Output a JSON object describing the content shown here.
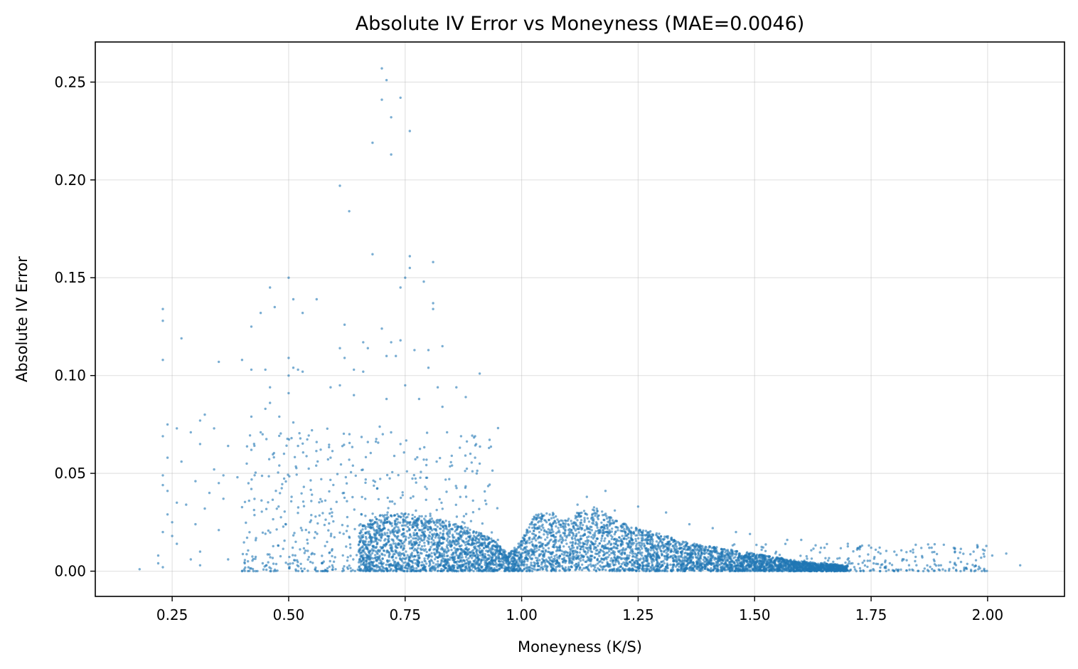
{
  "chart_data": {
    "type": "scatter",
    "title": "Absolute IV Error vs Moneyness (MAE=0.0046)",
    "xlabel": "Moneyness (K/S)",
    "ylabel": "Absolute IV Error",
    "xlim": [
      0.085,
      2.165
    ],
    "ylim": [
      -0.0129,
      0.2705
    ],
    "x_ticks": [
      0.25,
      0.5,
      0.75,
      1.0,
      1.25,
      1.5,
      1.75,
      2.0
    ],
    "x_tick_labels": [
      "0.25",
      "0.50",
      "0.75",
      "1.00",
      "1.25",
      "1.50",
      "1.75",
      "2.00"
    ],
    "y_ticks": [
      0.0,
      0.05,
      0.1,
      0.15,
      0.2,
      0.25
    ],
    "y_tick_labels": [
      "0.00",
      "0.05",
      "0.10",
      "0.15",
      "0.20",
      "0.25"
    ],
    "grid": true,
    "marker_color": "#1f77b4",
    "marker_alpha": 0.6,
    "series": [
      {
        "points": [
          [
            0.7,
            0.257
          ],
          [
            0.71,
            0.251
          ],
          [
            0.7,
            0.241
          ],
          [
            0.74,
            0.242
          ],
          [
            0.72,
            0.232
          ],
          [
            0.76,
            0.225
          ],
          [
            0.68,
            0.219
          ],
          [
            0.72,
            0.213
          ],
          [
            0.61,
            0.197
          ],
          [
            0.63,
            0.184
          ],
          [
            0.68,
            0.162
          ],
          [
            0.76,
            0.161
          ],
          [
            0.81,
            0.158
          ],
          [
            0.76,
            0.155
          ],
          [
            0.75,
            0.15
          ],
          [
            0.5,
            0.15
          ],
          [
            0.79,
            0.148
          ],
          [
            0.46,
            0.145
          ],
          [
            0.74,
            0.145
          ],
          [
            0.51,
            0.139
          ],
          [
            0.56,
            0.139
          ],
          [
            0.23,
            0.134
          ],
          [
            0.47,
            0.135
          ],
          [
            0.81,
            0.137
          ],
          [
            0.81,
            0.134
          ],
          [
            0.44,
            0.132
          ],
          [
            0.53,
            0.132
          ],
          [
            0.23,
            0.128
          ],
          [
            0.62,
            0.126
          ],
          [
            0.42,
            0.125
          ],
          [
            0.7,
            0.124
          ],
          [
            0.27,
            0.119
          ],
          [
            0.74,
            0.118
          ],
          [
            0.66,
            0.117
          ],
          [
            0.72,
            0.117
          ],
          [
            0.83,
            0.115
          ],
          [
            0.61,
            0.114
          ],
          [
            0.67,
            0.114
          ],
          [
            0.77,
            0.113
          ],
          [
            0.8,
            0.113
          ],
          [
            0.23,
            0.108
          ],
          [
            0.35,
            0.107
          ],
          [
            0.4,
            0.108
          ],
          [
            0.5,
            0.109
          ],
          [
            0.62,
            0.109
          ],
          [
            0.71,
            0.11
          ],
          [
            0.73,
            0.11
          ],
          [
            0.51,
            0.104
          ],
          [
            0.42,
            0.103
          ],
          [
            0.45,
            0.103
          ],
          [
            0.52,
            0.103
          ],
          [
            0.64,
            0.103
          ],
          [
            0.66,
            0.102
          ],
          [
            0.8,
            0.104
          ],
          [
            0.91,
            0.101
          ],
          [
            0.5,
            0.1
          ],
          [
            0.53,
            0.102
          ],
          [
            0.59,
            0.094
          ],
          [
            0.46,
            0.094
          ],
          [
            0.61,
            0.095
          ],
          [
            0.75,
            0.095
          ],
          [
            0.82,
            0.094
          ],
          [
            0.86,
            0.094
          ],
          [
            0.88,
            0.089
          ],
          [
            0.5,
            0.091
          ],
          [
            0.64,
            0.09
          ],
          [
            0.71,
            0.088
          ],
          [
            0.78,
            0.088
          ],
          [
            0.83,
            0.084
          ],
          [
            0.45,
            0.083
          ],
          [
            0.46,
            0.086
          ],
          [
            0.48,
            0.079
          ],
          [
            0.42,
            0.079
          ],
          [
            0.32,
            0.08
          ],
          [
            0.31,
            0.077
          ],
          [
            0.51,
            0.076
          ],
          [
            0.24,
            0.075
          ],
          [
            0.26,
            0.073
          ],
          [
            0.34,
            0.073
          ],
          [
            0.29,
            0.071
          ],
          [
            0.44,
            0.071
          ],
          [
            0.55,
            0.072
          ],
          [
            0.56,
            0.066
          ],
          [
            0.84,
            0.071
          ],
          [
            0.87,
            0.069
          ],
          [
            0.9,
            0.069
          ],
          [
            0.67,
            0.066
          ],
          [
            0.23,
            0.069
          ],
          [
            0.31,
            0.065
          ],
          [
            0.37,
            0.064
          ],
          [
            0.42,
            0.062
          ],
          [
            0.49,
            0.06
          ],
          [
            0.52,
            0.064
          ],
          [
            0.93,
            0.063
          ],
          [
            0.9,
            0.058
          ],
          [
            0.24,
            0.058
          ],
          [
            0.27,
            0.056
          ],
          [
            0.41,
            0.055
          ],
          [
            0.48,
            0.054
          ],
          [
            0.59,
            0.058
          ],
          [
            0.63,
            0.057
          ],
          [
            0.85,
            0.059
          ],
          [
            0.89,
            0.06
          ],
          [
            0.91,
            0.055
          ],
          [
            0.34,
            0.052
          ],
          [
            0.36,
            0.049
          ],
          [
            0.23,
            0.049
          ],
          [
            0.3,
            0.046
          ],
          [
            0.39,
            0.048
          ],
          [
            0.57,
            0.047
          ],
          [
            0.23,
            0.044
          ],
          [
            0.24,
            0.041
          ],
          [
            0.35,
            0.045
          ],
          [
            0.33,
            0.04
          ],
          [
            0.42,
            0.042
          ],
          [
            0.36,
            0.037
          ],
          [
            0.26,
            0.035
          ],
          [
            0.28,
            0.034
          ],
          [
            0.24,
            0.029
          ],
          [
            0.32,
            0.032
          ],
          [
            0.25,
            0.025
          ],
          [
            0.23,
            0.02
          ],
          [
            0.3,
            0.024
          ],
          [
            0.35,
            0.021
          ],
          [
            0.25,
            0.018
          ],
          [
            0.22,
            0.008
          ],
          [
            0.22,
            0.004
          ],
          [
            0.26,
            0.014
          ],
          [
            0.31,
            0.01
          ],
          [
            0.29,
            0.006
          ],
          [
            0.18,
            0.001
          ],
          [
            0.23,
            0.002
          ],
          [
            0.31,
            0.003
          ],
          [
            0.4,
            0.0
          ],
          [
            0.37,
            0.006
          ],
          [
            1.18,
            0.041
          ],
          [
            1.14,
            0.038
          ],
          [
            1.12,
            0.034
          ],
          [
            1.25,
            0.033
          ],
          [
            1.2,
            0.031
          ],
          [
            1.31,
            0.03
          ],
          [
            1.36,
            0.024
          ],
          [
            1.41,
            0.022
          ],
          [
            1.46,
            0.02
          ],
          [
            1.49,
            0.019
          ],
          [
            1.57,
            0.016
          ],
          [
            1.6,
            0.016
          ],
          [
            1.65,
            0.012
          ],
          [
            1.7,
            0.014
          ],
          [
            1.72,
            0.011
          ],
          [
            1.75,
            0.012
          ],
          [
            1.77,
            0.009
          ],
          [
            1.8,
            0.01
          ],
          [
            1.82,
            0.006
          ],
          [
            1.84,
            0.011
          ],
          [
            1.86,
            0.007
          ],
          [
            1.88,
            0.012
          ],
          [
            1.9,
            0.003
          ],
          [
            1.93,
            0.01
          ],
          [
            1.97,
            0.01
          ],
          [
            1.99,
            0.011
          ],
          [
            2.01,
            0.008
          ],
          [
            2.04,
            0.009
          ],
          [
            1.95,
            0.001
          ],
          [
            1.98,
            0.001
          ],
          [
            2.07,
            0.003
          ],
          [
            1.79,
            0.004
          ],
          [
            1.71,
            0.004
          ],
          [
            1.67,
            0.003
          ],
          [
            1.62,
            0.002
          ]
        ],
        "density_envelope": [
          [
            0.65,
            0.024
          ],
          [
            0.7,
            0.029
          ],
          [
            0.75,
            0.03
          ],
          [
            0.8,
            0.028
          ],
          [
            0.85,
            0.025
          ],
          [
            0.9,
            0.021
          ],
          [
            0.94,
            0.016
          ],
          [
            0.97,
            0.009
          ],
          [
            1.0,
            0.016
          ],
          [
            1.03,
            0.03
          ],
          [
            1.06,
            0.031
          ],
          [
            1.09,
            0.026
          ],
          [
            1.12,
            0.03
          ],
          [
            1.16,
            0.033
          ],
          [
            1.2,
            0.026
          ],
          [
            1.25,
            0.022
          ],
          [
            1.3,
            0.019
          ],
          [
            1.35,
            0.015
          ],
          [
            1.4,
            0.013
          ],
          [
            1.45,
            0.011
          ],
          [
            1.5,
            0.009
          ],
          [
            1.55,
            0.007
          ],
          [
            1.6,
            0.005
          ],
          [
            1.65,
            0.004
          ],
          [
            1.7,
            0.003
          ]
        ]
      }
    ]
  }
}
